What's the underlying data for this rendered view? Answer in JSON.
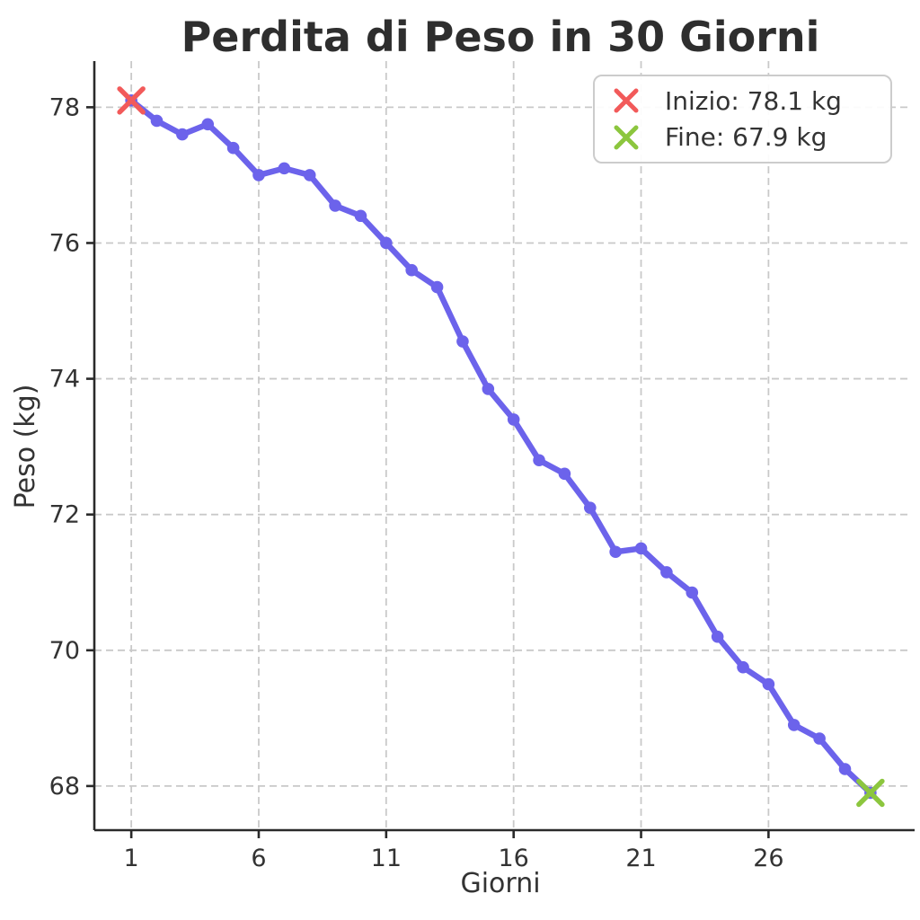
{
  "chart_data": {
    "type": "line",
    "title": "Perdita di Peso in 30 Giorni",
    "xlabel": "Giorni",
    "ylabel": "Peso (kg)",
    "x": [
      1,
      2,
      3,
      4,
      5,
      6,
      7,
      8,
      9,
      10,
      11,
      12,
      13,
      14,
      15,
      16,
      17,
      18,
      19,
      20,
      21,
      22,
      23,
      24,
      25,
      26,
      27,
      28,
      29,
      30
    ],
    "series": [
      {
        "name": "Peso",
        "color": "#6c63eb",
        "values": [
          78.1,
          77.8,
          77.6,
          77.75,
          77.4,
          77.0,
          77.1,
          77.0,
          76.55,
          76.4,
          76.0,
          75.6,
          75.35,
          74.55,
          73.85,
          73.4,
          72.8,
          72.6,
          72.1,
          71.45,
          71.5,
          71.15,
          70.85,
          70.2,
          69.75,
          69.5,
          68.9,
          68.7,
          68.25,
          67.9
        ]
      }
    ],
    "xticks": [
      1,
      6,
      11,
      16,
      21,
      26
    ],
    "yticks": [
      68,
      70,
      72,
      74,
      76,
      78
    ],
    "xlim": [
      -0.45,
      31.45
    ],
    "ylim": [
      67.35,
      78.68
    ],
    "grid": true,
    "grid_style": "dashed",
    "legend_position": "upper right",
    "annotations": [
      {
        "type": "marker",
        "shape": "x",
        "x": 1,
        "y": 78.1,
        "color": "#f25a5a",
        "label": "Inizio: 78.1 kg"
      },
      {
        "type": "marker",
        "shape": "x",
        "x": 30,
        "y": 67.9,
        "color": "#8cc63e",
        "label": "Fine: 67.9 kg"
      }
    ]
  },
  "legend": {
    "items": [
      {
        "label": "Inizio: 78.1 kg",
        "color": "#f25a5a"
      },
      {
        "label": "Fine: 67.9 kg",
        "color": "#8cc63e"
      }
    ]
  },
  "colors": {
    "line": "#6c63eb",
    "start_marker": "#f25a5a",
    "end_marker": "#8cc63e",
    "grid": "#c9c9c9",
    "spine": "#2a2a2a",
    "text": "#333333",
    "background": "#ffffff"
  }
}
